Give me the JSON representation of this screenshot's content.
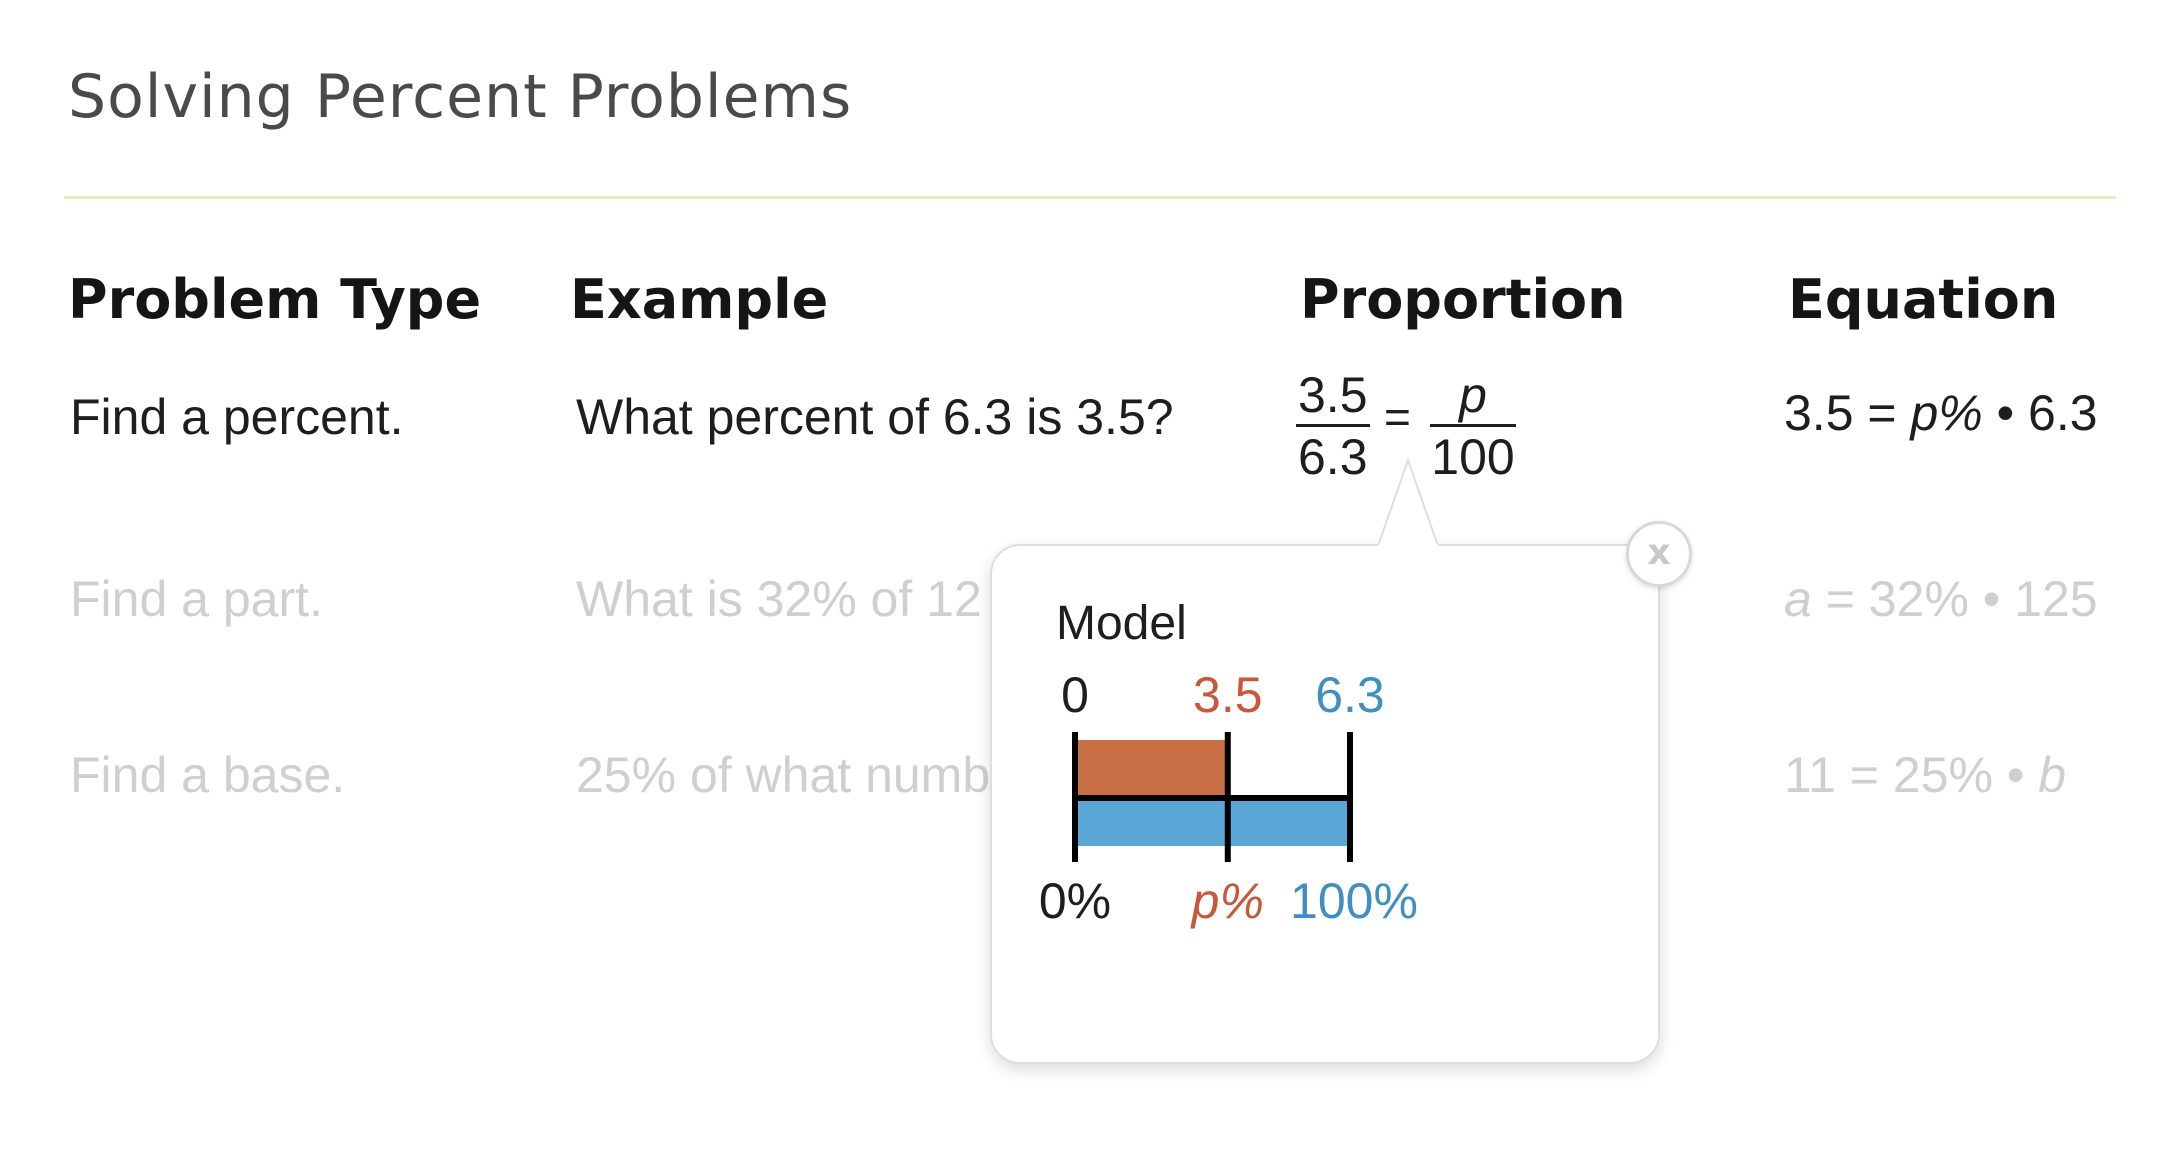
{
  "page": {
    "title": "Solving Percent Problems"
  },
  "table": {
    "headers": [
      "Problem Type",
      "Example",
      "Proportion",
      "Equation"
    ],
    "rows": [
      {
        "type": "Find a percent.",
        "example": "What percent of 6.3 is 3.5?",
        "proportion": {
          "left_num": "3.5",
          "left_den": "6.3",
          "equals": "=",
          "right_num": "p",
          "right_den": "100"
        },
        "equation": {
          "lhs": "3.5 = ",
          "var": "p%",
          "rhs": " • 6.3"
        }
      },
      {
        "type": "Find a part.",
        "example": "What is 32% of 12",
        "equation": {
          "var": "a",
          "rhs": " = 32% • 125"
        }
      },
      {
        "type": "Find a base.",
        "example": "25% of what numb",
        "equation": {
          "lhs": "11 = 25% • ",
          "var": "b"
        }
      }
    ]
  },
  "popup": {
    "title": "Model",
    "close_label": "x",
    "model": {
      "top_labels": [
        "0",
        "3.5",
        "6.3"
      ],
      "bottom_labels": [
        "0%",
        "p%",
        "100%"
      ],
      "part_value": 3.5,
      "whole_value": 6.3,
      "colors": {
        "part": "#c96f45",
        "whole": "#5aa6d6",
        "part_text": "#c9573a",
        "whole_text": "#3f8fc0"
      }
    }
  }
}
